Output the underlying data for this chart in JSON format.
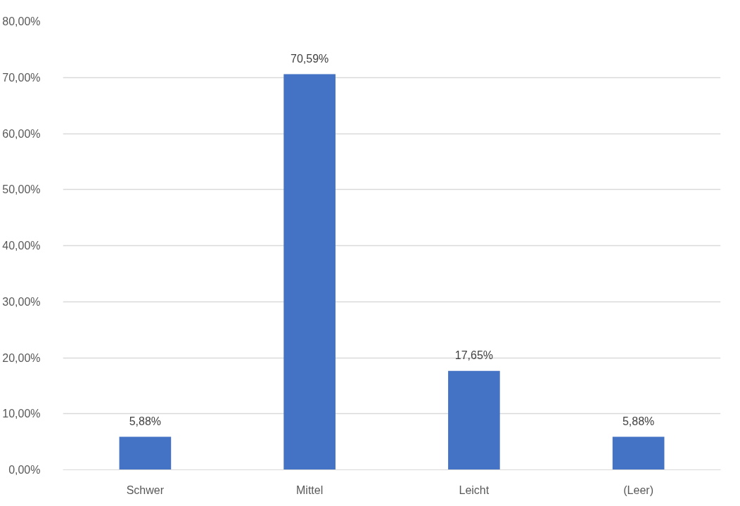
{
  "chart_data": {
    "type": "bar",
    "categories": [
      "Schwer",
      "Mittel",
      "Leicht",
      "(Leer)"
    ],
    "values": [
      5.88,
      70.59,
      17.65,
      5.88
    ],
    "value_labels": [
      "5,88%",
      "70,59%",
      "17,65%",
      "5,88%"
    ],
    "color": "#4472c4",
    "ylim": [
      0,
      80
    ],
    "yticks": [
      {
        "value": 0,
        "label": "0,00%"
      },
      {
        "value": 10,
        "label": "10,00%"
      },
      {
        "value": 20,
        "label": "20,00%"
      },
      {
        "value": 30,
        "label": "30,00%"
      },
      {
        "value": 40,
        "label": "40,00%"
      },
      {
        "value": 50,
        "label": "50,00%"
      },
      {
        "value": 60,
        "label": "60,00%"
      },
      {
        "value": 70,
        "label": "70,00%"
      },
      {
        "value": 80,
        "label": "80,00%"
      }
    ],
    "grid": "y"
  }
}
